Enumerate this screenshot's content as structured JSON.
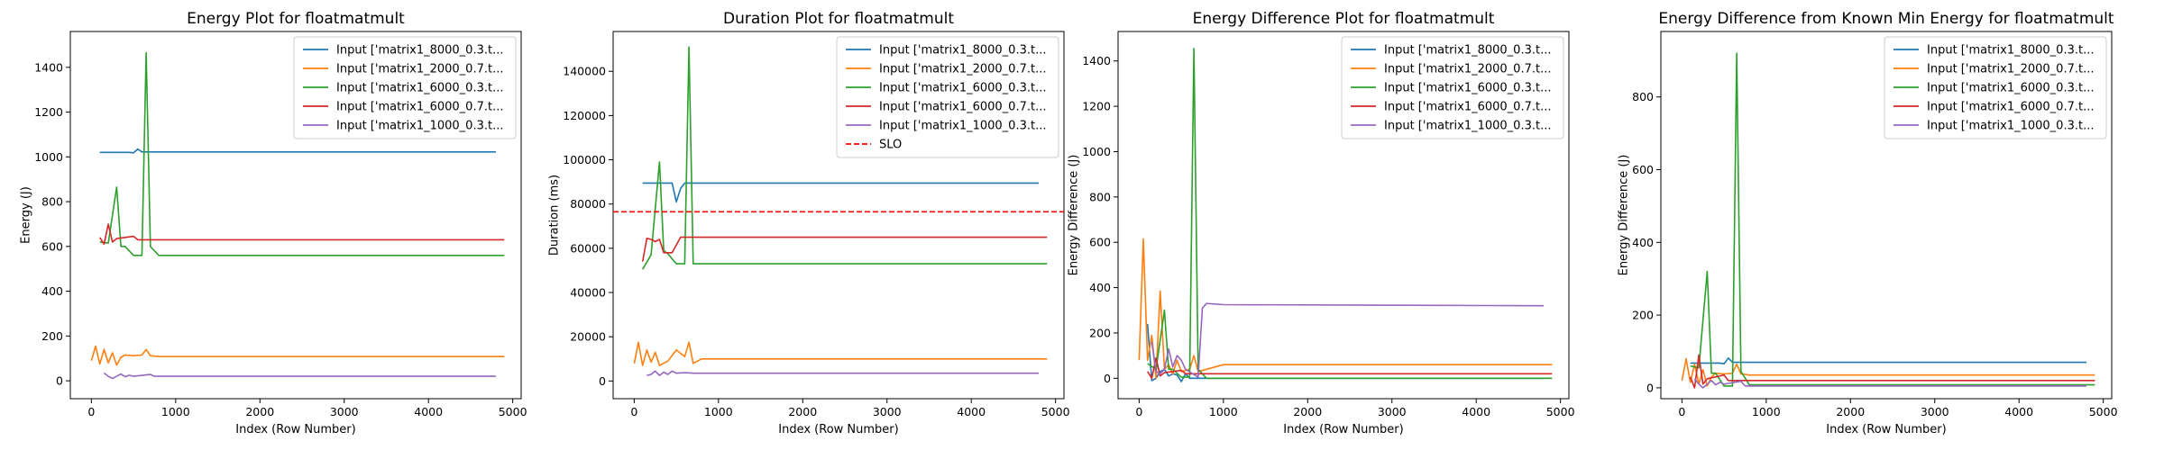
{
  "chart_data": [
    {
      "type": "line",
      "title": "Energy Plot for floatmatmult",
      "xlabel": "Index (Row Number)",
      "ylabel": "Energy (J)",
      "xlim": [
        -250,
        5100
      ],
      "ylim": [
        -80,
        1560
      ],
      "xticks": [
        0,
        1000,
        2000,
        3000,
        4000,
        5000
      ],
      "yticks": [
        0,
        200,
        400,
        600,
        800,
        1000,
        1200,
        1400
      ],
      "legend_position": "upper right",
      "series": [
        {
          "name": "Input ['matrix1_8000_0.3.t...",
          "color": "#1f77b4",
          "x": [
            100,
            450,
            500,
            550,
            600,
            4800
          ],
          "y": [
            1020,
            1020,
            1018,
            1035,
            1022,
            1022
          ]
        },
        {
          "name": "Input ['matrix1_2000_0.7.t...",
          "color": "#ff7f0e",
          "x": [
            0,
            50,
            100,
            150,
            200,
            250,
            300,
            350,
            400,
            500,
            600,
            650,
            700,
            800,
            4900
          ],
          "y": [
            90,
            155,
            75,
            140,
            80,
            125,
            70,
            105,
            115,
            112,
            115,
            140,
            112,
            108,
            108
          ]
        },
        {
          "name": "Input ['matrix1_6000_0.3.t...",
          "color": "#2ca02c",
          "x": [
            100,
            200,
            300,
            350,
            400,
            500,
            600,
            650,
            700,
            800,
            4900
          ],
          "y": [
            620,
            615,
            865,
            600,
            600,
            560,
            560,
            1465,
            600,
            560,
            560
          ]
        },
        {
          "name": "Input ['matrix1_6000_0.7.t...",
          "color": "#d62728",
          "x": [
            100,
            150,
            200,
            250,
            300,
            500,
            550,
            4900
          ],
          "y": [
            640,
            610,
            700,
            620,
            635,
            645,
            630,
            630
          ]
        },
        {
          "name": "Input ['matrix1_1000_0.3.t...",
          "color": "#9467bd",
          "x": [
            150,
            200,
            250,
            300,
            350,
            400,
            450,
            500,
            550,
            700,
            750,
            4800
          ],
          "y": [
            35,
            20,
            10,
            20,
            30,
            18,
            25,
            20,
            22,
            28,
            20,
            20
          ]
        }
      ]
    },
    {
      "type": "line",
      "title": "Duration Plot for floatmatmult",
      "xlabel": "Index (Row Number)",
      "ylabel": "Duration (ms)",
      "xlim": [
        -250,
        5100
      ],
      "ylim": [
        -8000,
        158000
      ],
      "xticks": [
        0,
        1000,
        2000,
        3000,
        4000,
        5000
      ],
      "yticks": [
        0,
        20000,
        40000,
        60000,
        80000,
        100000,
        120000,
        140000
      ],
      "legend_position": "upper right",
      "series": [
        {
          "name": "Input ['matrix1_8000_0.3.t...",
          "color": "#1f77b4",
          "x": [
            100,
            450,
            500,
            550,
            600,
            4800
          ],
          "y": [
            89500,
            89500,
            81000,
            87000,
            89500,
            89500
          ]
        },
        {
          "name": "Input ['matrix1_2000_0.7.t...",
          "color": "#ff7f0e",
          "x": [
            0,
            50,
            100,
            150,
            200,
            250,
            300,
            400,
            500,
            600,
            650,
            700,
            800,
            4900
          ],
          "y": [
            8000,
            17500,
            7000,
            14000,
            8500,
            13000,
            7000,
            9000,
            14000,
            11000,
            17500,
            8000,
            10000,
            10000
          ]
        },
        {
          "name": "Input ['matrix1_6000_0.3.t...",
          "color": "#2ca02c",
          "x": [
            100,
            200,
            300,
            350,
            400,
            500,
            600,
            650,
            700,
            4900
          ],
          "y": [
            50500,
            57000,
            99000,
            59000,
            57500,
            53000,
            53000,
            151000,
            53000,
            53000
          ]
        },
        {
          "name": "Input ['matrix1_6000_0.7.t...",
          "color": "#d62728",
          "x": [
            100,
            150,
            200,
            250,
            300,
            350,
            450,
            550,
            4900
          ],
          "y": [
            54000,
            64500,
            64000,
            63000,
            64000,
            58000,
            58000,
            65000,
            65000
          ]
        },
        {
          "name": "Input ['matrix1_1000_0.3.t...",
          "color": "#9467bd",
          "x": [
            150,
            200,
            250,
            300,
            350,
            400,
            450,
            500,
            600,
            700,
            4800
          ],
          "y": [
            2500,
            3000,
            4500,
            2500,
            4000,
            3000,
            4500,
            3500,
            3800,
            3500,
            3500
          ]
        }
      ],
      "slo": {
        "name": "SLO",
        "value": 76500,
        "color": "#ff0000"
      }
    },
    {
      "type": "line",
      "title": "Energy Difference Plot for floatmatmult",
      "xlabel": "Index (Row Number)",
      "ylabel": "Energy Difference (J)",
      "xlim": [
        -250,
        5100
      ],
      "ylim": [
        -90,
        1530
      ],
      "xticks": [
        0,
        1000,
        2000,
        3000,
        4000,
        5000
      ],
      "yticks": [
        0,
        200,
        400,
        600,
        800,
        1000,
        1200,
        1400
      ],
      "legend_position": "upper right",
      "series": [
        {
          "name": "Input ['matrix1_8000_0.3.t...",
          "color": "#1f77b4",
          "x": [
            100,
            150,
            200,
            250,
            300,
            350,
            400,
            450,
            500,
            550,
            600,
            700,
            4800
          ],
          "y": [
            240,
            -10,
            0,
            30,
            40,
            10,
            20,
            15,
            -15,
            20,
            0,
            0,
            0
          ]
        },
        {
          "name": "Input ['matrix1_2000_0.7.t...",
          "color": "#ff7f0e",
          "x": [
            0,
            50,
            100,
            150,
            200,
            250,
            300,
            350,
            400,
            450,
            500,
            600,
            650,
            700,
            800,
            1000,
            4900
          ],
          "y": [
            80,
            615,
            80,
            190,
            0,
            385,
            40,
            60,
            20,
            80,
            30,
            40,
            100,
            30,
            40,
            60,
            60
          ]
        },
        {
          "name": "Input ['matrix1_6000_0.3.t...",
          "color": "#2ca02c",
          "x": [
            100,
            200,
            300,
            350,
            400,
            500,
            600,
            650,
            700,
            800,
            4900
          ],
          "y": [
            65,
            40,
            300,
            40,
            40,
            5,
            5,
            1455,
            40,
            0,
            0
          ]
        },
        {
          "name": "Input ['matrix1_6000_0.7.t...",
          "color": "#d62728",
          "x": [
            100,
            150,
            200,
            250,
            300,
            400,
            500,
            550,
            4900
          ],
          "y": [
            30,
            0,
            90,
            10,
            25,
            30,
            35,
            20,
            20
          ]
        },
        {
          "name": "Input ['matrix1_1000_0.3.t...",
          "color": "#9467bd",
          "x": [
            150,
            200,
            250,
            300,
            350,
            400,
            450,
            500,
            550,
            700,
            750,
            800,
            1000,
            4800
          ],
          "y": [
            160,
            30,
            20,
            40,
            130,
            50,
            100,
            80,
            40,
            5,
            310,
            330,
            325,
            320
          ]
        }
      ]
    },
    {
      "type": "line",
      "title": "Energy Difference from Known Min Energy for floatmatmult",
      "xlabel": "Index (Row Number)",
      "ylabel": "Energy Difference (J)",
      "xlim": [
        -250,
        5100
      ],
      "ylim": [
        -30,
        980
      ],
      "xticks": [
        0,
        1000,
        2000,
        3000,
        4000,
        5000
      ],
      "yticks": [
        0,
        200,
        400,
        600,
        800
      ],
      "legend_position": "upper right",
      "series": [
        {
          "name": "Input ['matrix1_8000_0.3.t...",
          "color": "#1f77b4",
          "x": [
            100,
            450,
            500,
            550,
            600,
            4800
          ],
          "y": [
            68,
            68,
            66,
            82,
            70,
            70
          ]
        },
        {
          "name": "Input ['matrix1_2000_0.7.t...",
          "color": "#ff7f0e",
          "x": [
            0,
            50,
            100,
            150,
            200,
            250,
            300,
            350,
            400,
            500,
            600,
            650,
            700,
            800,
            4900
          ],
          "y": [
            20,
            80,
            15,
            65,
            10,
            50,
            5,
            30,
            40,
            38,
            40,
            65,
            38,
            35,
            35
          ]
        },
        {
          "name": "Input ['matrix1_6000_0.3.t...",
          "color": "#2ca02c",
          "x": [
            100,
            200,
            300,
            350,
            400,
            500,
            600,
            650,
            700,
            800,
            4900
          ],
          "y": [
            60,
            55,
            320,
            40,
            40,
            5,
            5,
            920,
            45,
            8,
            8
          ]
        },
        {
          "name": "Input ['matrix1_6000_0.7.t...",
          "color": "#d62728",
          "x": [
            100,
            150,
            200,
            250,
            300,
            500,
            550,
            4900
          ],
          "y": [
            30,
            0,
            90,
            10,
            25,
            35,
            20,
            20
          ]
        },
        {
          "name": "Input ['matrix1_1000_0.3.t...",
          "color": "#9467bd",
          "x": [
            150,
            200,
            250,
            300,
            350,
            400,
            450,
            500,
            550,
            700,
            750,
            4800
          ],
          "y": [
            25,
            10,
            0,
            10,
            20,
            8,
            15,
            10,
            12,
            18,
            5,
            5
          ]
        }
      ]
    }
  ]
}
